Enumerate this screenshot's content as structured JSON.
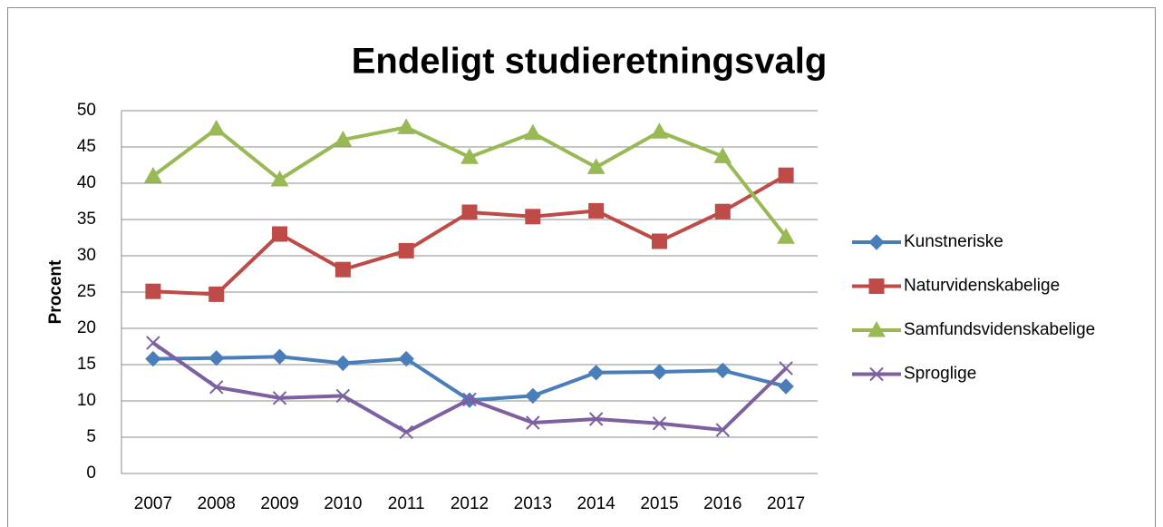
{
  "chart_data": {
    "type": "line",
    "title": "Endeligt studieretningsvalg",
    "y_label": "Procent",
    "categories": [
      "2007",
      "2008",
      "2009",
      "2010",
      "2011",
      "2012",
      "2013",
      "2014",
      "2015",
      "2016",
      "2017"
    ],
    "series": [
      {
        "name": "Kunstneriske",
        "color": "#4a7ebb",
        "marker": "diamond",
        "values": [
          15.8,
          15.9,
          16.1,
          15.2,
          15.8,
          10.1,
          10.7,
          13.9,
          14.0,
          14.2,
          12.0
        ]
      },
      {
        "name": "Naturvidenskabelige",
        "color": "#be4b48",
        "marker": "square",
        "values": [
          25.1,
          24.7,
          33.0,
          28.1,
          30.7,
          36.0,
          35.4,
          36.2,
          32.0,
          36.1,
          41.1
        ]
      },
      {
        "name": "Samfundsvidenskabelige",
        "color": "#98b954",
        "marker": "triangle",
        "values": [
          41.0,
          47.5,
          40.5,
          46.0,
          47.7,
          43.6,
          46.9,
          42.2,
          47.1,
          43.7,
          32.6
        ]
      },
      {
        "name": "Sproglige",
        "color": "#7d60a0",
        "marker": "x",
        "values": [
          18.0,
          11.9,
          10.4,
          10.7,
          5.7,
          10.2,
          7.0,
          7.5,
          6.9,
          6.0,
          14.5
        ]
      }
    ],
    "ylim": [
      0,
      50
    ],
    "yticks": [
      0,
      5,
      10,
      15,
      20,
      25,
      30,
      35,
      40,
      45,
      50
    ],
    "grid": true,
    "legend": "right"
  }
}
